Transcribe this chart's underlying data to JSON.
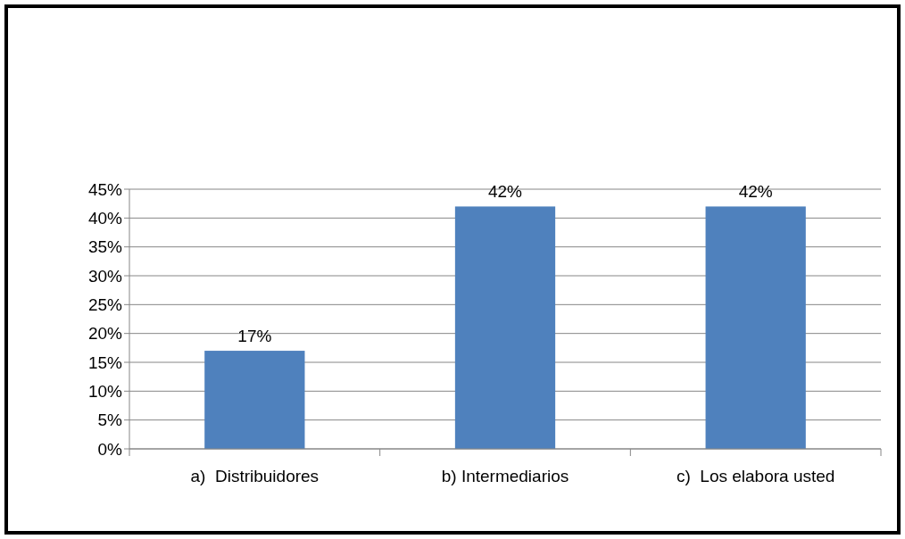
{
  "chart_data": {
    "type": "bar",
    "categories": [
      "a)  Distribuidores",
      "b) Intermediarios",
      "c)  Los elabora usted"
    ],
    "values": [
      17,
      42,
      42
    ],
    "color": "#4f81bd",
    "value_labels": [
      "17%",
      "42%",
      "42%"
    ],
    "ylim": [
      0,
      45
    ],
    "yticks": [
      {
        "value": 0,
        "label": "0%"
      },
      {
        "value": 5,
        "label": "5%"
      },
      {
        "value": 10,
        "label": "10%"
      },
      {
        "value": 15,
        "label": "15%"
      },
      {
        "value": 20,
        "label": "20%"
      },
      {
        "value": 25,
        "label": "25%"
      },
      {
        "value": 30,
        "label": "30%"
      },
      {
        "value": 35,
        "label": "35%"
      },
      {
        "value": 40,
        "label": "40%"
      },
      {
        "value": 45,
        "label": "45%"
      }
    ],
    "grid": "y"
  }
}
